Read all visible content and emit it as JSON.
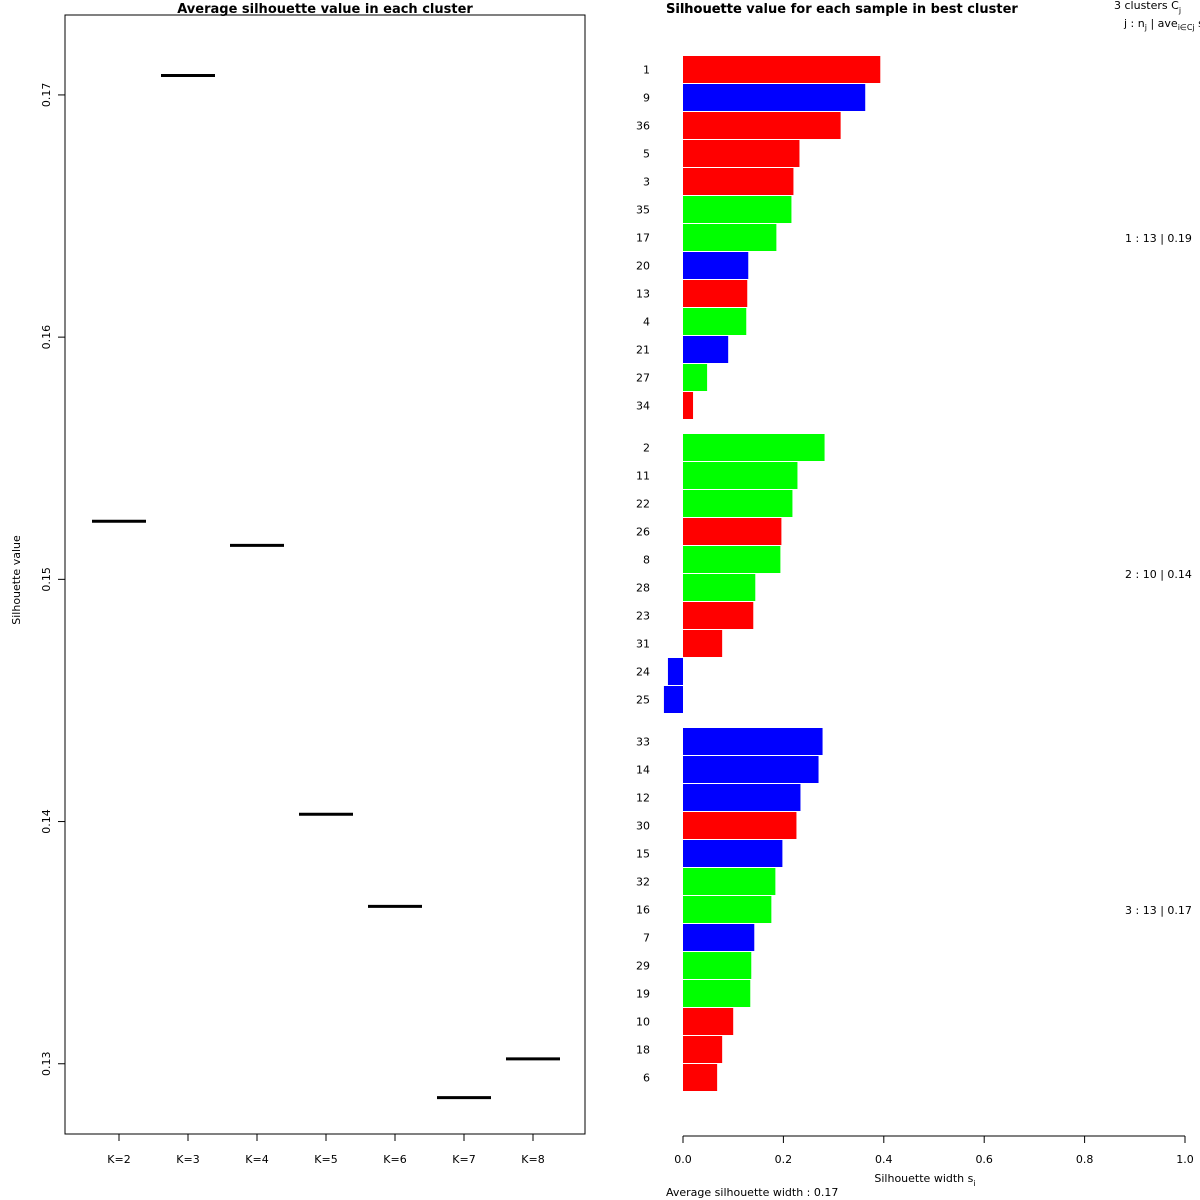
{
  "chart_data": [
    {
      "type": "scatter",
      "title": "Average silhouette value in each cluster",
      "xlabel": "",
      "ylabel": "Silhouette value",
      "categories": [
        "K=2",
        "K=3",
        "K=4",
        "K=5",
        "K=6",
        "K=7",
        "K=8"
      ],
      "values": [
        0.1524,
        0.1708,
        0.1514,
        0.1403,
        0.1365,
        0.1286,
        0.1302
      ],
      "ylim": [
        0.1271,
        0.1733
      ],
      "yticks": [
        "0.13",
        "0.14",
        "0.15",
        "0.16",
        "0.17"
      ],
      "marker": "horizontal-segment"
    },
    {
      "type": "bar",
      "orientation": "horizontal",
      "title": "Silhouette value for each sample in best cluster",
      "title_overlap": "Silhouette",
      "xlabel": "Silhouette width s",
      "xlabel_sub": "i",
      "xlim": [
        0,
        1
      ],
      "xticks": [
        "0.0",
        "0.2",
        "0.4",
        "0.6",
        "0.8",
        "1.0"
      ],
      "legend_header": {
        "line1": "3  clusters  C",
        "line1_sub": "j",
        "line2": "j :  n",
        "line2_sub1": "j",
        "line2_mid": " | ave",
        "line2_sub2": "i∈Cj",
        "line2_end": "  s"
      },
      "colors": {
        "red": "#ff0000",
        "green": "#00ff00",
        "blue": "#0000ff"
      },
      "footer": "Average silhouette width :  0.17",
      "clusters": [
        {
          "label": "1 :   13  |  0.19",
          "samples": [
            {
              "id": "1",
              "value": 0.393,
              "color": "red"
            },
            {
              "id": "9",
              "value": 0.363,
              "color": "blue"
            },
            {
              "id": "36",
              "value": 0.314,
              "color": "red"
            },
            {
              "id": "5",
              "value": 0.232,
              "color": "red"
            },
            {
              "id": "3",
              "value": 0.22,
              "color": "red"
            },
            {
              "id": "35",
              "value": 0.216,
              "color": "green"
            },
            {
              "id": "17",
              "value": 0.186,
              "color": "green"
            },
            {
              "id": "20",
              "value": 0.13,
              "color": "blue"
            },
            {
              "id": "13",
              "value": 0.128,
              "color": "red"
            },
            {
              "id": "4",
              "value": 0.126,
              "color": "green"
            },
            {
              "id": "21",
              "value": 0.09,
              "color": "blue"
            },
            {
              "id": "27",
              "value": 0.048,
              "color": "green"
            },
            {
              "id": "34",
              "value": 0.02,
              "color": "red"
            }
          ]
        },
        {
          "label": "2 :   10  |  0.14",
          "samples": [
            {
              "id": "2",
              "value": 0.282,
              "color": "green"
            },
            {
              "id": "11",
              "value": 0.228,
              "color": "green"
            },
            {
              "id": "22",
              "value": 0.218,
              "color": "green"
            },
            {
              "id": "26",
              "value": 0.196,
              "color": "red"
            },
            {
              "id": "8",
              "value": 0.194,
              "color": "green"
            },
            {
              "id": "28",
              "value": 0.144,
              "color": "green"
            },
            {
              "id": "23",
              "value": 0.14,
              "color": "red"
            },
            {
              "id": "31",
              "value": 0.078,
              "color": "red"
            },
            {
              "id": "24",
              "value": -0.03,
              "color": "blue"
            },
            {
              "id": "25",
              "value": -0.038,
              "color": "blue"
            }
          ]
        },
        {
          "label": "3 :   13  |  0.17",
          "samples": [
            {
              "id": "33",
              "value": 0.278,
              "color": "blue"
            },
            {
              "id": "14",
              "value": 0.27,
              "color": "blue"
            },
            {
              "id": "12",
              "value": 0.234,
              "color": "blue"
            },
            {
              "id": "30",
              "value": 0.226,
              "color": "red"
            },
            {
              "id": "15",
              "value": 0.198,
              "color": "blue"
            },
            {
              "id": "32",
              "value": 0.184,
              "color": "green"
            },
            {
              "id": "16",
              "value": 0.176,
              "color": "green"
            },
            {
              "id": "7",
              "value": 0.142,
              "color": "blue"
            },
            {
              "id": "29",
              "value": 0.136,
              "color": "green"
            },
            {
              "id": "19",
              "value": 0.134,
              "color": "green"
            },
            {
              "id": "10",
              "value": 0.1,
              "color": "red"
            },
            {
              "id": "18",
              "value": 0.078,
              "color": "red"
            },
            {
              "id": "6",
              "value": 0.068,
              "color": "red"
            }
          ]
        }
      ]
    }
  ]
}
